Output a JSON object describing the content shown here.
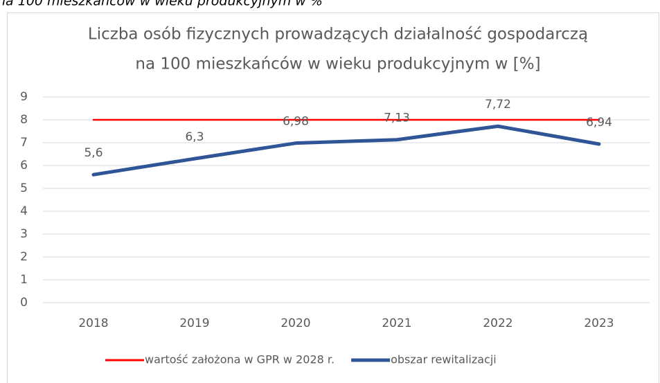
{
  "caption": "na 100 mieszkańców w wieku produkcyjnym w %",
  "chart_data": {
    "type": "line",
    "title": [
      "Liczba osób fizycznych prowadzących działalność gospodarczą",
      "na 100 mieszkańców w wieku produkcyjnym w [%]"
    ],
    "categories": [
      "2018",
      "2019",
      "2020",
      "2021",
      "2022",
      "2023"
    ],
    "series": [
      {
        "name": "wartość założona w GPR w 2028 r.",
        "color": "#ff0000",
        "values": [
          8,
          8,
          8,
          8,
          8,
          8
        ]
      },
      {
        "name": "obszar rewitalizacji",
        "color": "#2f5597",
        "values": [
          5.6,
          6.3,
          6.98,
          7.13,
          7.72,
          6.94
        ],
        "value_labels": [
          "5,6",
          "6,3",
          "6,98",
          "7,13",
          "7,72",
          "6,94"
        ]
      }
    ],
    "ylim": [
      0,
      9
    ],
    "yticks": [
      0,
      1,
      2,
      3,
      4,
      5,
      6,
      7,
      8,
      9
    ],
    "grid": true
  }
}
